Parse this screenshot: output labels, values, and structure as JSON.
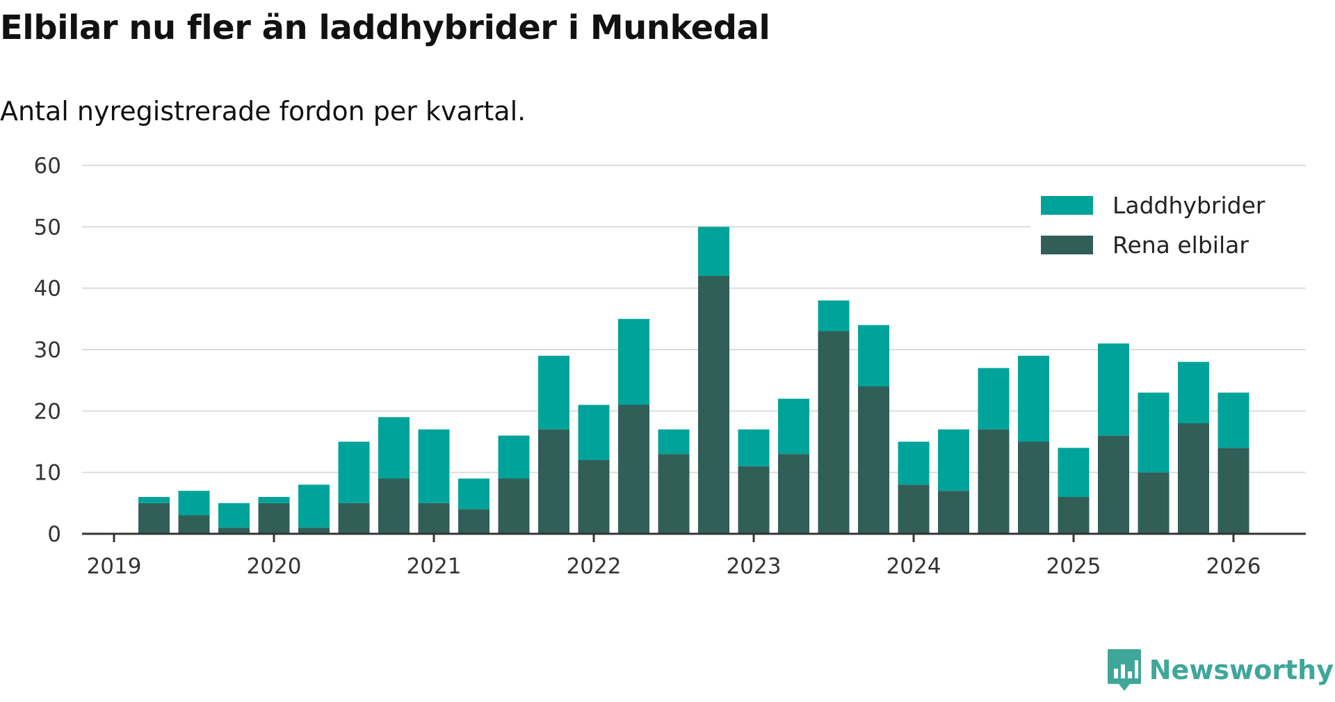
{
  "header": {
    "title": "Elbilar nu fler än laddhybrider i Munkedal",
    "subtitle": "Antal nyregistrerade fordon per kvartal."
  },
  "branding": {
    "name": "Newsworthy",
    "icon": "newsworthy-logo-icon",
    "color": "#3fa79a"
  },
  "colors": {
    "laddhybrider": "#00a39a",
    "rena_elbilar": "#315e57",
    "gridline": "#dcdcdc",
    "axis": "#333333"
  },
  "chart_data": {
    "type": "bar",
    "stacked": true,
    "title": "Elbilar nu fler än laddhybrider i Munkedal",
    "subtitle": "Antal nyregistrerade fordon per kvartal.",
    "xlabel": "",
    "ylabel": "",
    "ylim": [
      0,
      60
    ],
    "yticks": [
      0,
      10,
      20,
      30,
      40,
      50,
      60
    ],
    "xlim": [
      2019,
      2026.2
    ],
    "xticks": [
      "2019",
      "2020",
      "2021",
      "2022",
      "2023",
      "2024",
      "2025",
      "2026"
    ],
    "grid": true,
    "legend_position": "top-right",
    "categories": [
      "2019 Q1",
      "2019 Q2",
      "2019 Q3",
      "2019 Q4",
      "2020 Q1",
      "2020 Q2",
      "2020 Q3",
      "2020 Q4",
      "2021 Q1",
      "2021 Q2",
      "2021 Q3",
      "2021 Q4",
      "2022 Q1",
      "2022 Q2",
      "2022 Q3",
      "2022 Q4",
      "2023 Q1",
      "2023 Q2",
      "2023 Q3",
      "2023 Q4",
      "2024 Q1",
      "2024 Q2",
      "2024 Q3",
      "2024 Q4",
      "2025 Q1",
      "2025 Q2",
      "2025 Q3",
      "2025 Q4"
    ],
    "x": [
      2019.25,
      2019.5,
      2019.75,
      2020.0,
      2020.25,
      2020.5,
      2020.75,
      2021.0,
      2021.25,
      2021.5,
      2021.75,
      2022.0,
      2022.25,
      2022.5,
      2022.75,
      2023.0,
      2023.25,
      2023.5,
      2023.75,
      2024.0,
      2024.25,
      2024.5,
      2024.75,
      2025.0,
      2025.25,
      2025.5,
      2025.75,
      2026.0
    ],
    "series": [
      {
        "name": "Rena elbilar",
        "color": "#315e57",
        "values": [
          5,
          3,
          1,
          5,
          1,
          5,
          9,
          5,
          4,
          9,
          17,
          12,
          21,
          13,
          42,
          11,
          13,
          33,
          24,
          8,
          7,
          17,
          15,
          6,
          16,
          10,
          18,
          14
        ]
      },
      {
        "name": "Laddhybrider",
        "color": "#00a39a",
        "values": [
          1,
          4,
          4,
          1,
          7,
          10,
          10,
          12,
          5,
          7,
          12,
          9,
          14,
          4,
          8,
          6,
          9,
          5,
          10,
          7,
          10,
          10,
          14,
          8,
          15,
          13,
          10,
          9
        ]
      }
    ]
  }
}
